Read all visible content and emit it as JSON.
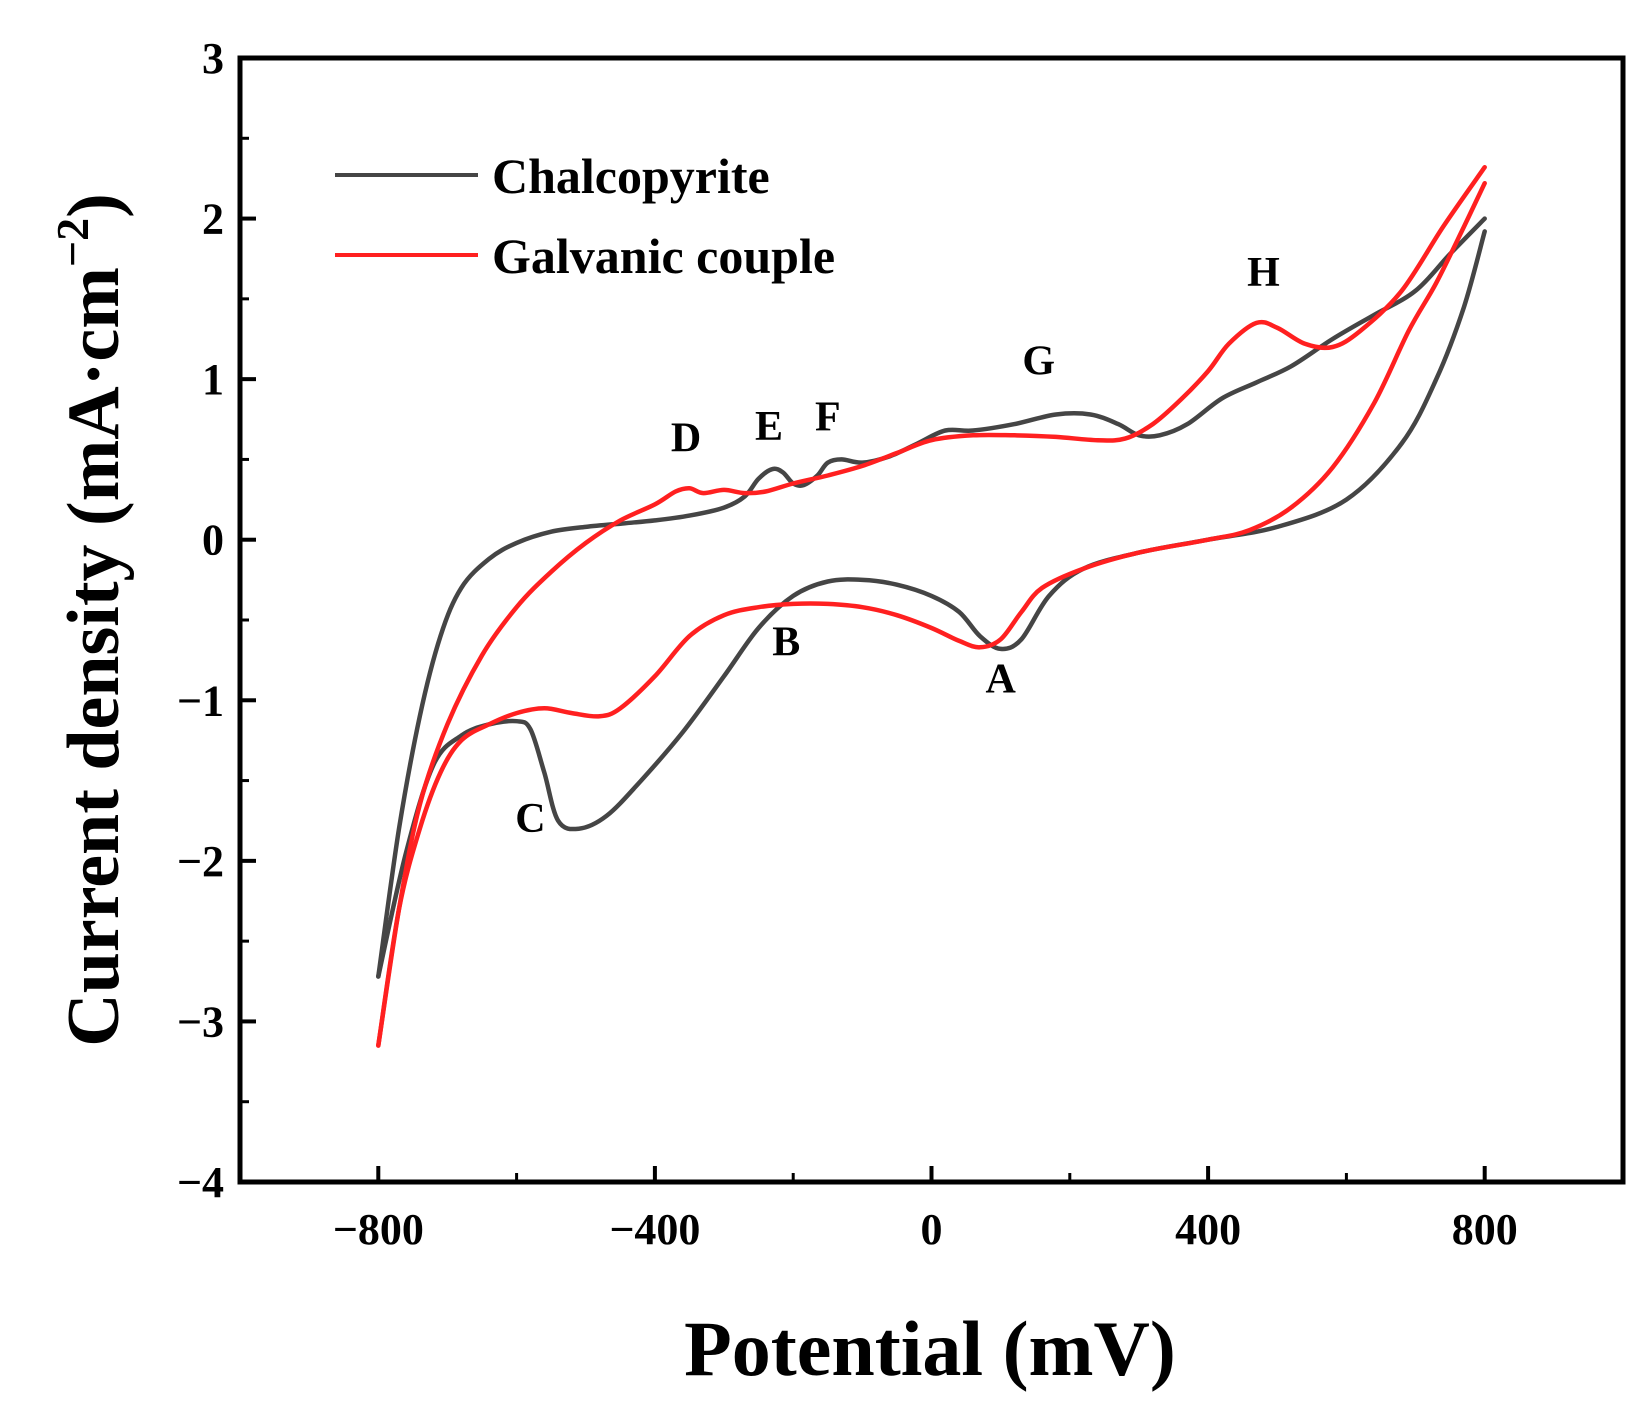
{
  "chart_data": {
    "type": "line",
    "title": "",
    "xlabel": "Potential (mV)",
    "ylabel": "Current density (mA·cm−2)",
    "ylabel_parts": {
      "main": "Current density (mA·cm",
      "sup": "−2",
      "close": ")"
    },
    "xlim": [
      -1000,
      1000
    ],
    "ylim": [
      -4,
      3
    ],
    "xticks": [
      -800,
      -400,
      0,
      400,
      800
    ],
    "xtick_labels": [
      "−800",
      "−400",
      "0",
      "400",
      "800"
    ],
    "yticks": [
      -4,
      -3,
      -2,
      -1,
      0,
      1,
      2,
      3
    ],
    "ytick_labels": [
      "−4",
      "−3",
      "−2",
      "−1",
      "0",
      "1",
      "2",
      "3"
    ],
    "grid": false,
    "legend_position": "top-left",
    "series": [
      {
        "name": "Chalcopyrite",
        "color": "#454545",
        "points": [
          [
            -800,
            -2.72
          ],
          [
            -760,
            -1.95
          ],
          [
            -720,
            -1.4
          ],
          [
            -680,
            -1.22
          ],
          [
            -640,
            -1.15
          ],
          [
            -600,
            -1.13
          ],
          [
            -580,
            -1.18
          ],
          [
            -560,
            -1.45
          ],
          [
            -540,
            -1.75
          ],
          [
            -510,
            -1.8
          ],
          [
            -470,
            -1.72
          ],
          [
            -420,
            -1.5
          ],
          [
            -360,
            -1.2
          ],
          [
            -300,
            -0.85
          ],
          [
            -250,
            -0.55
          ],
          [
            -200,
            -0.35
          ],
          [
            -150,
            -0.26
          ],
          [
            -100,
            -0.25
          ],
          [
            -50,
            -0.28
          ],
          [
            0,
            -0.35
          ],
          [
            40,
            -0.45
          ],
          [
            70,
            -0.6
          ],
          [
            100,
            -0.68
          ],
          [
            130,
            -0.62
          ],
          [
            170,
            -0.35
          ],
          [
            220,
            -0.18
          ],
          [
            300,
            -0.08
          ],
          [
            400,
            0.0
          ],
          [
            500,
            0.08
          ],
          [
            600,
            0.25
          ],
          [
            680,
            0.6
          ],
          [
            730,
            1.0
          ],
          [
            770,
            1.45
          ],
          [
            800,
            1.92
          ]
        ]
      },
      {
        "name": "Chalcopyrite (anodic scan)",
        "color": "#454545",
        "points": [
          [
            -800,
            -2.72
          ],
          [
            -770,
            -1.8
          ],
          [
            -740,
            -1.1
          ],
          [
            -710,
            -0.6
          ],
          [
            -680,
            -0.3
          ],
          [
            -640,
            -0.12
          ],
          [
            -600,
            -0.02
          ],
          [
            -550,
            0.05
          ],
          [
            -500,
            0.08
          ],
          [
            -450,
            0.1
          ],
          [
            -400,
            0.12
          ],
          [
            -350,
            0.15
          ],
          [
            -300,
            0.2
          ],
          [
            -270,
            0.27
          ],
          [
            -250,
            0.38
          ],
          [
            -230,
            0.44
          ],
          [
            -215,
            0.42
          ],
          [
            -200,
            0.35
          ],
          [
            -185,
            0.34
          ],
          [
            -165,
            0.4
          ],
          [
            -150,
            0.48
          ],
          [
            -130,
            0.5
          ],
          [
            -100,
            0.48
          ],
          [
            -60,
            0.52
          ],
          [
            -20,
            0.6
          ],
          [
            20,
            0.68
          ],
          [
            60,
            0.68
          ],
          [
            120,
            0.72
          ],
          [
            180,
            0.78
          ],
          [
            230,
            0.78
          ],
          [
            270,
            0.72
          ],
          [
            300,
            0.65
          ],
          [
            330,
            0.65
          ],
          [
            370,
            0.72
          ],
          [
            420,
            0.88
          ],
          [
            470,
            0.98
          ],
          [
            520,
            1.08
          ],
          [
            580,
            1.25
          ],
          [
            640,
            1.4
          ],
          [
            700,
            1.55
          ],
          [
            750,
            1.78
          ],
          [
            800,
            2.0
          ]
        ]
      },
      {
        "name": "Galvanic couple",
        "color": "#ff2020",
        "points": [
          [
            -800,
            -3.15
          ],
          [
            -770,
            -2.3
          ],
          [
            -740,
            -1.8
          ],
          [
            -710,
            -1.45
          ],
          [
            -680,
            -1.25
          ],
          [
            -640,
            -1.15
          ],
          [
            -600,
            -1.08
          ],
          [
            -560,
            -1.05
          ],
          [
            -520,
            -1.08
          ],
          [
            -480,
            -1.1
          ],
          [
            -450,
            -1.05
          ],
          [
            -400,
            -0.85
          ],
          [
            -350,
            -0.6
          ],
          [
            -300,
            -0.47
          ],
          [
            -250,
            -0.42
          ],
          [
            -200,
            -0.4
          ],
          [
            -150,
            -0.4
          ],
          [
            -100,
            -0.42
          ],
          [
            -50,
            -0.47
          ],
          [
            0,
            -0.55
          ],
          [
            40,
            -0.63
          ],
          [
            70,
            -0.67
          ],
          [
            100,
            -0.62
          ],
          [
            130,
            -0.45
          ],
          [
            160,
            -0.3
          ],
          [
            220,
            -0.18
          ],
          [
            300,
            -0.08
          ],
          [
            400,
            0.0
          ],
          [
            460,
            0.06
          ],
          [
            520,
            0.2
          ],
          [
            580,
            0.45
          ],
          [
            640,
            0.85
          ],
          [
            690,
            1.3
          ],
          [
            730,
            1.6
          ],
          [
            770,
            1.95
          ],
          [
            800,
            2.22
          ]
        ]
      },
      {
        "name": "Galvanic couple (anodic scan)",
        "color": "#ff2020",
        "points": [
          [
            -800,
            -3.15
          ],
          [
            -770,
            -2.3
          ],
          [
            -740,
            -1.65
          ],
          [
            -700,
            -1.15
          ],
          [
            -650,
            -0.72
          ],
          [
            -600,
            -0.42
          ],
          [
            -550,
            -0.2
          ],
          [
            -500,
            -0.02
          ],
          [
            -450,
            0.12
          ],
          [
            -400,
            0.22
          ],
          [
            -370,
            0.3
          ],
          [
            -350,
            0.32
          ],
          [
            -330,
            0.29
          ],
          [
            -300,
            0.31
          ],
          [
            -270,
            0.29
          ],
          [
            -240,
            0.3
          ],
          [
            -200,
            0.35
          ],
          [
            -150,
            0.4
          ],
          [
            -100,
            0.46
          ],
          [
            -50,
            0.54
          ],
          [
            0,
            0.62
          ],
          [
            60,
            0.65
          ],
          [
            120,
            0.65
          ],
          [
            180,
            0.64
          ],
          [
            240,
            0.62
          ],
          [
            280,
            0.63
          ],
          [
            320,
            0.72
          ],
          [
            360,
            0.87
          ],
          [
            400,
            1.05
          ],
          [
            430,
            1.22
          ],
          [
            470,
            1.35
          ],
          [
            500,
            1.32
          ],
          [
            540,
            1.22
          ],
          [
            580,
            1.2
          ],
          [
            620,
            1.3
          ],
          [
            680,
            1.55
          ],
          [
            740,
            1.95
          ],
          [
            800,
            2.32
          ]
        ]
      }
    ],
    "legend": [
      {
        "label": "Chalcopyrite",
        "color": "#454545"
      },
      {
        "label": "Galvanic couple",
        "color": "#ff2020"
      }
    ],
    "annotations": [
      {
        "text": "A",
        "x": 100,
        "y": -0.95
      },
      {
        "text": "B",
        "x": -210,
        "y": -0.72
      },
      {
        "text": "C",
        "x": -580,
        "y": -1.82
      },
      {
        "text": "D",
        "x": -355,
        "y": 0.55
      },
      {
        "text": "E",
        "x": -235,
        "y": 0.62
      },
      {
        "text": "F",
        "x": -150,
        "y": 0.68
      },
      {
        "text": "G",
        "x": 155,
        "y": 1.03
      },
      {
        "text": "H",
        "x": 480,
        "y": 1.58
      }
    ]
  }
}
